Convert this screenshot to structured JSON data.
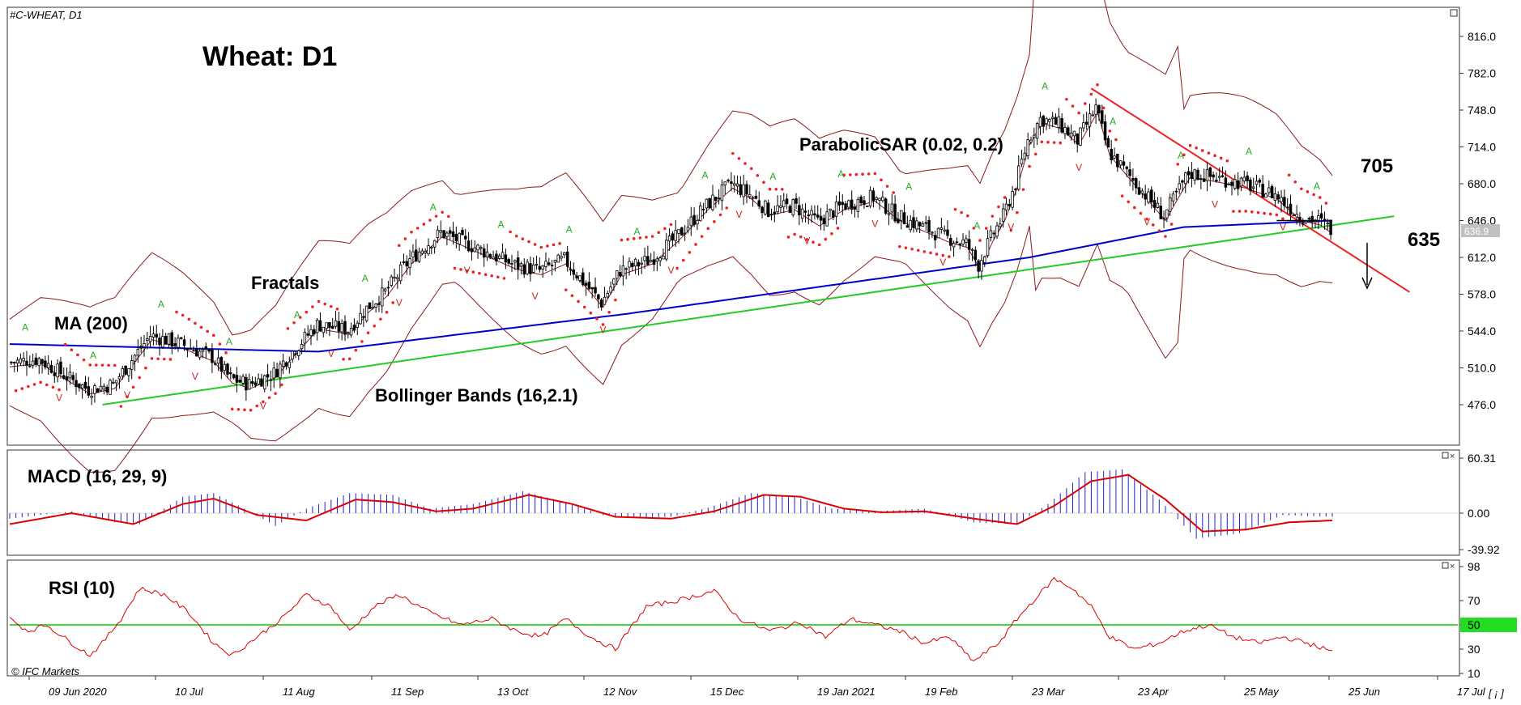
{
  "chart_data": [
    {
      "type": "candlestick",
      "symbol_label": "#C-WHEAT, D1",
      "title": "Wheat: D1",
      "ylim": [
        442,
        842
      ],
      "y_ticks": [
        476.0,
        510.0,
        544.0,
        578.0,
        612.0,
        646.0,
        680.0,
        714.0,
        748.0,
        782.0,
        816.0
      ],
      "current_price_label": "636.9",
      "x_date_labels": [
        "09 Jun 2020",
        "10 Jul",
        "11 Aug",
        "11 Sep",
        "13 Oct",
        "12 Nov",
        "15 Dec",
        "19 Jan 2021",
        "19 Feb",
        "23 Mar",
        "23 Apr",
        "25 May",
        "25 Jun",
        "17 Jul"
      ],
      "close_path": [
        [
          0,
          515
        ],
        [
          10,
          518
        ],
        [
          20,
          500
        ],
        [
          26,
          490
        ],
        [
          34,
          495
        ],
        [
          38,
          510
        ],
        [
          46,
          540
        ],
        [
          56,
          532
        ],
        [
          66,
          520
        ],
        [
          72,
          500
        ],
        [
          78,
          495
        ],
        [
          86,
          505
        ],
        [
          92,
          525
        ],
        [
          100,
          550
        ],
        [
          110,
          545
        ],
        [
          116,
          565
        ],
        [
          122,
          580
        ],
        [
          130,
          610
        ],
        [
          140,
          635
        ],
        [
          148,
          625
        ],
        [
          156,
          615
        ],
        [
          164,
          605
        ],
        [
          172,
          600
        ],
        [
          180,
          610
        ],
        [
          186,
          590
        ],
        [
          192,
          570
        ],
        [
          198,
          600
        ],
        [
          208,
          610
        ],
        [
          216,
          630
        ],
        [
          226,
          660
        ],
        [
          234,
          680
        ],
        [
          240,
          670
        ],
        [
          246,
          655
        ],
        [
          254,
          660
        ],
        [
          262,
          645
        ],
        [
          270,
          660
        ],
        [
          280,
          668
        ],
        [
          288,
          650
        ],
        [
          296,
          640
        ],
        [
          304,
          630
        ],
        [
          310,
          625
        ],
        [
          314,
          605
        ],
        [
          318,
          630
        ],
        [
          322,
          650
        ],
        [
          326,
          680
        ],
        [
          330,
          720
        ],
        [
          334,
          740
        ],
        [
          340,
          735
        ],
        [
          346,
          720
        ],
        [
          352,
          750
        ],
        [
          356,
          710
        ],
        [
          362,
          690
        ],
        [
          368,
          670
        ],
        [
          374,
          650
        ],
        [
          382,
          690
        ],
        [
          392,
          685
        ],
        [
          400,
          680
        ],
        [
          410,
          670
        ],
        [
          418,
          650
        ],
        [
          424,
          646
        ],
        [
          428,
          638
        ]
      ],
      "overlays": {
        "ma_label": "MA (200)",
        "fractals_label": "Fractals",
        "bollinger_label": "Bollinger Bands (16,2.1)",
        "sar_label": "ParabolicSAR (0.02, 0.2)",
        "ma200": [
          [
            0,
            532
          ],
          [
            100,
            525
          ],
          [
            200,
            560
          ],
          [
            280,
            592
          ],
          [
            330,
            612
          ],
          [
            380,
            640
          ],
          [
            428,
            646
          ]
        ],
        "support_line": [
          [
            30,
            476
          ],
          [
            448,
            650
          ]
        ],
        "resistance_line": [
          [
            350,
            768
          ],
          [
            453,
            580
          ]
        ],
        "level_high": "705",
        "level_low": "635",
        "arrow": "down"
      },
      "colors": {
        "bull": "#ffffff",
        "bear": "#000000",
        "ma200": "#0000cc",
        "support": "#22cc22",
        "resistance": "#ee2222",
        "bollinger": "#8b1a1a",
        "sar": "#ee2222"
      }
    },
    {
      "type": "bar",
      "title": "MACD (16, 29, 9)",
      "ylim": [
        -39.92,
        60.31
      ],
      "y_ticks": [
        60.31,
        0.0,
        -39.92
      ],
      "histogram_path": [
        [
          0,
          -6
        ],
        [
          20,
          2
        ],
        [
          34,
          -10
        ],
        [
          42,
          -12
        ],
        [
          56,
          18
        ],
        [
          66,
          22
        ],
        [
          76,
          5
        ],
        [
          86,
          -14
        ],
        [
          96,
          5
        ],
        [
          110,
          22
        ],
        [
          124,
          20
        ],
        [
          136,
          5
        ],
        [
          150,
          10
        ],
        [
          166,
          24
        ],
        [
          180,
          12
        ],
        [
          192,
          -2
        ],
        [
          202,
          -5
        ],
        [
          214,
          -4
        ],
        [
          226,
          6
        ],
        [
          240,
          22
        ],
        [
          254,
          18
        ],
        [
          266,
          5
        ],
        [
          280,
          2
        ],
        [
          296,
          5
        ],
        [
          312,
          -10
        ],
        [
          326,
          -12
        ],
        [
          336,
          10
        ],
        [
          348,
          45
        ],
        [
          360,
          48
        ],
        [
          372,
          15
        ],
        [
          384,
          -28
        ],
        [
          398,
          -22
        ],
        [
          412,
          -2
        ],
        [
          428,
          -4
        ]
      ],
      "signal_path": [
        [
          0,
          -12
        ],
        [
          20,
          0
        ],
        [
          40,
          -12
        ],
        [
          56,
          10
        ],
        [
          66,
          16
        ],
        [
          80,
          -2
        ],
        [
          96,
          -8
        ],
        [
          112,
          15
        ],
        [
          124,
          12
        ],
        [
          138,
          2
        ],
        [
          150,
          5
        ],
        [
          168,
          20
        ],
        [
          182,
          10
        ],
        [
          196,
          -4
        ],
        [
          214,
          -6
        ],
        [
          228,
          2
        ],
        [
          244,
          20
        ],
        [
          256,
          18
        ],
        [
          270,
          5
        ],
        [
          282,
          1
        ],
        [
          296,
          2
        ],
        [
          312,
          -6
        ],
        [
          326,
          -12
        ],
        [
          338,
          8
        ],
        [
          350,
          35
        ],
        [
          362,
          42
        ],
        [
          374,
          15
        ],
        [
          386,
          -20
        ],
        [
          400,
          -18
        ],
        [
          414,
          -10
        ],
        [
          428,
          -8
        ]
      ],
      "colors": {
        "histogram": "#2222cc",
        "signal": "#dd0000"
      }
    },
    {
      "type": "line",
      "title": "RSI (10)",
      "ylim": [
        0,
        100
      ],
      "y_ticks": [
        98,
        70,
        50,
        30,
        10
      ],
      "level": 50,
      "rsi_path": [
        [
          0,
          55
        ],
        [
          6,
          45
        ],
        [
          12,
          50
        ],
        [
          20,
          35
        ],
        [
          26,
          25
        ],
        [
          30,
          35
        ],
        [
          36,
          55
        ],
        [
          42,
          80
        ],
        [
          50,
          75
        ],
        [
          58,
          60
        ],
        [
          66,
          35
        ],
        [
          72,
          25
        ],
        [
          80,
          40
        ],
        [
          88,
          55
        ],
        [
          96,
          75
        ],
        [
          104,
          65
        ],
        [
          110,
          45
        ],
        [
          118,
          65
        ],
        [
          126,
          75
        ],
        [
          136,
          60
        ],
        [
          146,
          50
        ],
        [
          156,
          55
        ],
        [
          164,
          45
        ],
        [
          172,
          40
        ],
        [
          180,
          55
        ],
        [
          188,
          40
        ],
        [
          196,
          30
        ],
        [
          206,
          65
        ],
        [
          216,
          70
        ],
        [
          228,
          78
        ],
        [
          236,
          55
        ],
        [
          246,
          45
        ],
        [
          256,
          52
        ],
        [
          264,
          40
        ],
        [
          272,
          55
        ],
        [
          280,
          50
        ],
        [
          288,
          45
        ],
        [
          296,
          35
        ],
        [
          304,
          40
        ],
        [
          312,
          20
        ],
        [
          320,
          35
        ],
        [
          326,
          55
        ],
        [
          332,
          72
        ],
        [
          338,
          88
        ],
        [
          344,
          80
        ],
        [
          350,
          65
        ],
        [
          356,
          40
        ],
        [
          364,
          30
        ],
        [
          372,
          35
        ],
        [
          380,
          45
        ],
        [
          388,
          50
        ],
        [
          396,
          40
        ],
        [
          404,
          35
        ],
        [
          412,
          40
        ],
        [
          420,
          35
        ],
        [
          428,
          28
        ]
      ],
      "colors": {
        "rsi": "#dd0000",
        "level": "#00cc00"
      }
    }
  ],
  "branding": {
    "watermark": "© IFC Markets"
  },
  "toolbar": {
    "scroll_button": "[ ¡ ]"
  }
}
